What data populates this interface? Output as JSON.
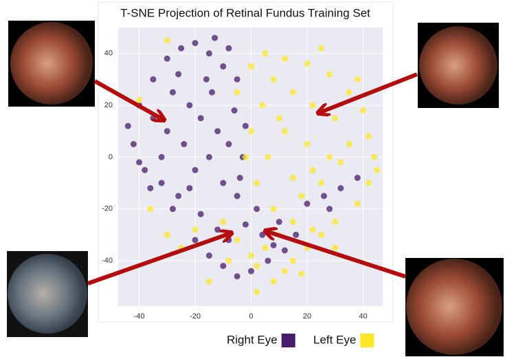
{
  "chart_data": {
    "type": "scatter",
    "title": "T-SNE Projection of Retinal Fundus Training Set",
    "xlim": [
      -47.5,
      47
    ],
    "ylim": [
      -57.5,
      50
    ],
    "xticks": [
      -40,
      -20,
      0,
      20,
      40
    ],
    "yticks": [
      -40,
      -20,
      0,
      20,
      40
    ],
    "grid": true,
    "series": [
      {
        "name": "Right Eye",
        "color": "#481a6c",
        "x": [
          -40,
          -35,
          -30,
          -25,
          -20,
          -15,
          -10,
          -5,
          -28,
          -22,
          -18,
          -12,
          -8,
          -3,
          -42,
          -38,
          -32,
          -26,
          -20,
          -15,
          -10,
          -5,
          -30,
          -35,
          -44,
          -24,
          -14,
          -6,
          -2,
          -36,
          -28,
          -18,
          -12,
          -8,
          -2,
          4,
          8,
          -15,
          -10,
          -5,
          0,
          6,
          12,
          16,
          -20,
          26,
          32,
          38,
          28,
          20,
          -32,
          -26,
          -16,
          -40,
          -22,
          -4,
          2,
          10,
          -13,
          -8
        ],
        "y": [
          20,
          30,
          38,
          42,
          44,
          40,
          35,
          30,
          25,
          20,
          15,
          10,
          5,
          0,
          5,
          -5,
          -10,
          -15,
          -5,
          0,
          -10,
          -15,
          10,
          15,
          12,
          5,
          25,
          18,
          12,
          -12,
          -20,
          -22,
          -28,
          -32,
          -26,
          -30,
          -34,
          -38,
          -42,
          -46,
          -44,
          -40,
          -36,
          -30,
          -32,
          -15,
          -12,
          -8,
          -20,
          -18,
          0,
          32,
          30,
          -2,
          -12,
          -8,
          -20,
          -25,
          46,
          42
        ]
      },
      {
        "name": "Left Eye",
        "color": "#fde725",
        "x": [
          5,
          12,
          20,
          28,
          35,
          40,
          42,
          44,
          42,
          38,
          30,
          22,
          15,
          8,
          2,
          -2,
          0,
          4,
          8,
          15,
          22,
          30,
          35,
          28,
          20,
          12,
          6,
          15,
          25,
          32,
          10,
          5,
          0,
          -5,
          15,
          20,
          25,
          -10,
          -20,
          -25,
          8,
          2,
          12,
          18,
          -15,
          38,
          25,
          -5,
          0,
          45,
          -30,
          -36,
          -8,
          30,
          10,
          18,
          2,
          -40,
          -30,
          22
        ],
        "y": [
          40,
          38,
          36,
          32,
          25,
          18,
          8,
          0,
          -10,
          -18,
          -25,
          -28,
          -25,
          -20,
          -10,
          0,
          10,
          20,
          30,
          25,
          20,
          15,
          5,
          0,
          5,
          10,
          0,
          -8,
          -10,
          -2,
          -30,
          -35,
          -38,
          -32,
          -40,
          -35,
          -30,
          -25,
          -28,
          -35,
          -48,
          -52,
          -44,
          -45,
          -48,
          30,
          42,
          25,
          35,
          -5,
          -30,
          -20,
          -40,
          -35,
          15,
          -15,
          -42,
          22,
          45,
          -5
        ]
      }
    ]
  }
}
